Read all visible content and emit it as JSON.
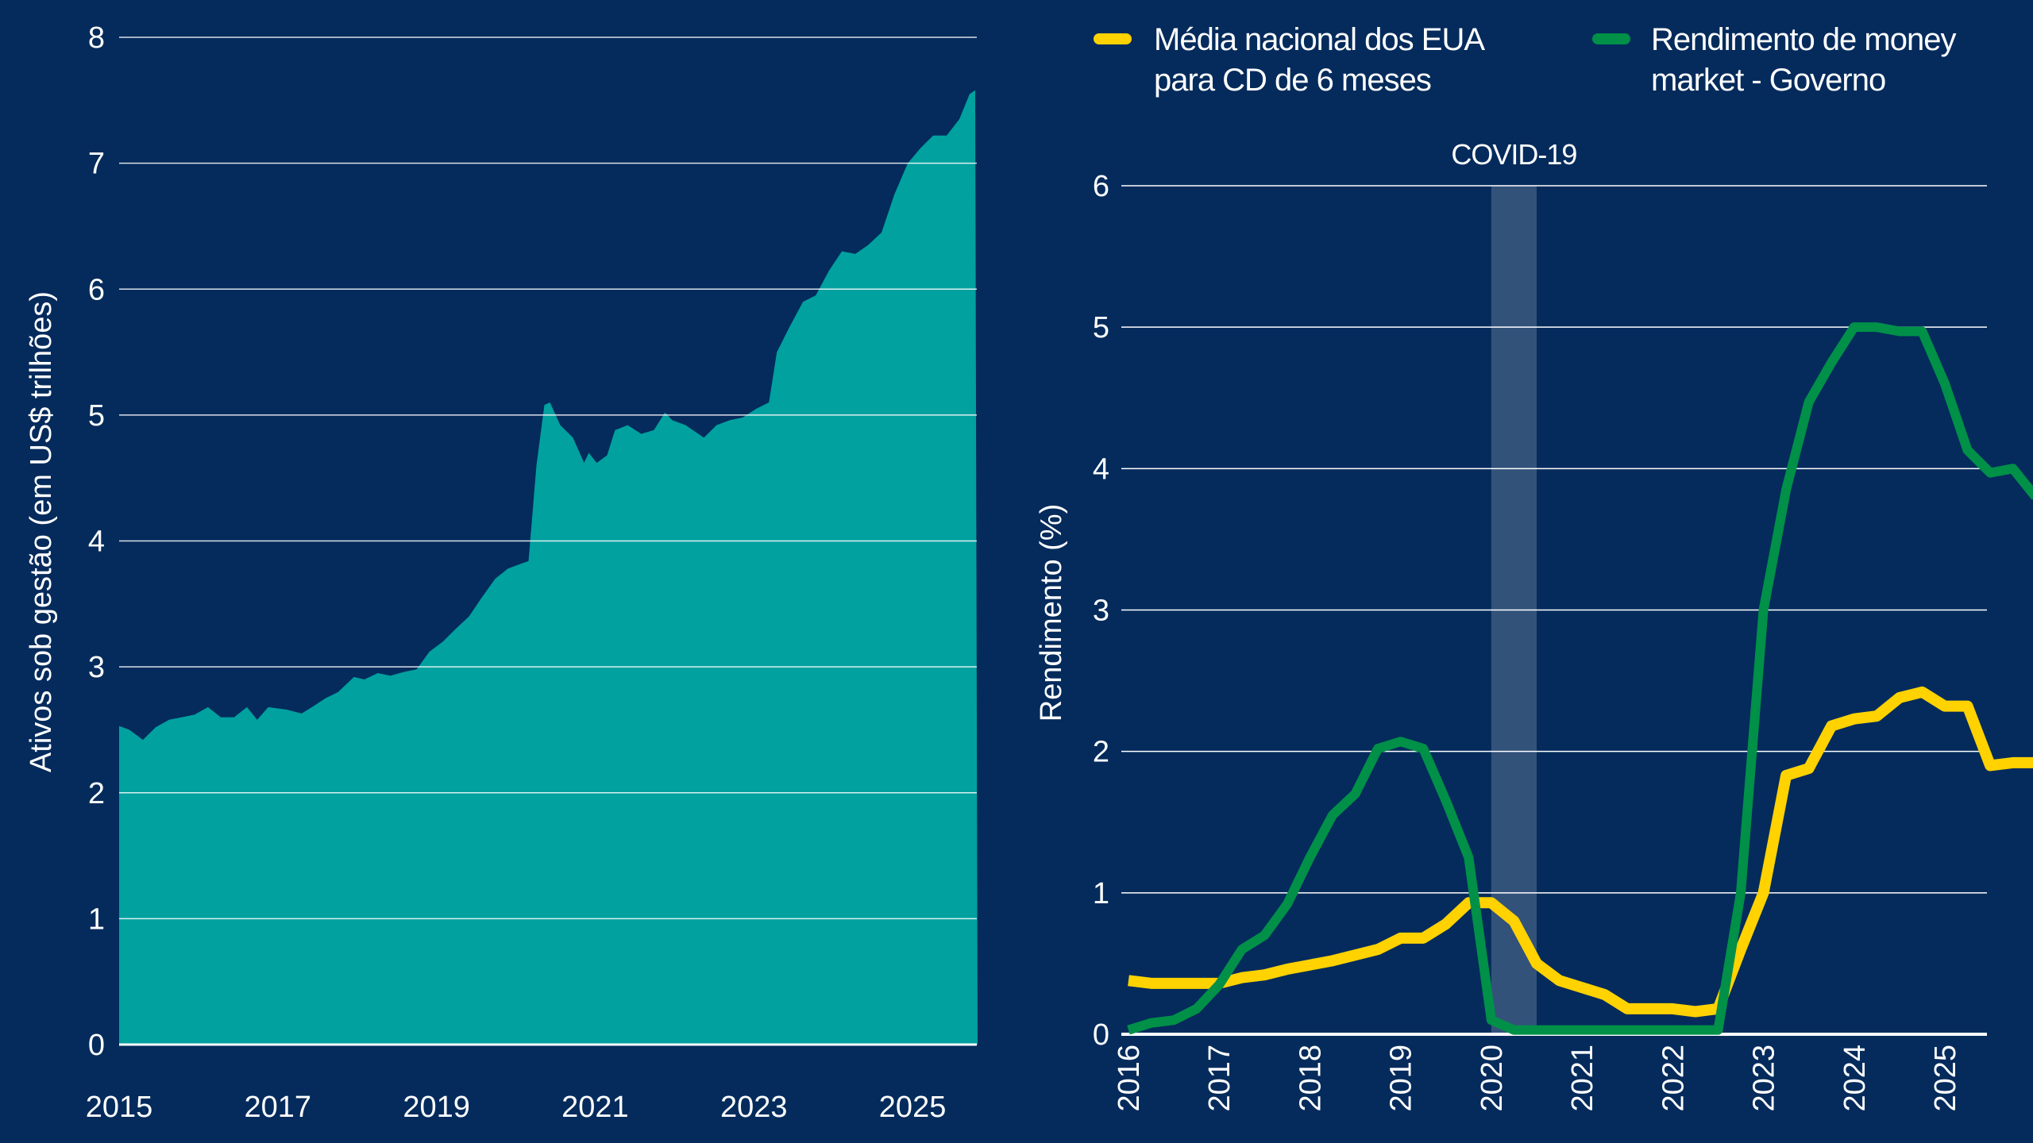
{
  "colors": {
    "background": "#042b5c",
    "area": "#00a19f",
    "cd": "#ffd200",
    "mm": "#009048",
    "covid_band": "#33527a",
    "grid": "#ffffff"
  },
  "chart_data": [
    {
      "type": "area",
      "ylabel": "Ativos sob gestão (em US$ trilhões)",
      "xlabel": "",
      "xlim": [
        2015,
        2025.79
      ],
      "ylim": [
        0,
        8
      ],
      "grid": true,
      "x_ticks": [
        "2015",
        "2017",
        "2019",
        "2021",
        "2023",
        "2025"
      ],
      "y_ticks": [
        "0",
        "1",
        "2",
        "3",
        "4",
        "5",
        "6",
        "7",
        "8"
      ],
      "x": [
        2015.0,
        2015.13,
        2015.3,
        2015.46,
        2015.63,
        2015.79,
        2015.95,
        2016.12,
        2016.28,
        2016.45,
        2016.61,
        2016.74,
        2016.88,
        2017.11,
        2017.3,
        2017.43,
        2017.6,
        2017.76,
        2017.96,
        2018.09,
        2018.26,
        2018.42,
        2018.59,
        2018.75,
        2018.91,
        2019.08,
        2019.24,
        2019.41,
        2019.57,
        2019.74,
        2019.9,
        2020.07,
        2020.16,
        2020.26,
        2020.36,
        2020.43,
        2020.56,
        2020.72,
        2020.86,
        2020.92,
        2021.02,
        2021.15,
        2021.25,
        2021.41,
        2021.58,
        2021.74,
        2021.88,
        2021.97,
        2022.14,
        2022.37,
        2022.53,
        2022.7,
        2022.86,
        2023.03,
        2023.19,
        2023.29,
        2023.45,
        2023.62,
        2023.78,
        2023.95,
        2024.11,
        2024.28,
        2024.44,
        2024.61,
        2024.77,
        2024.94,
        2025.1,
        2025.26,
        2025.43,
        2025.59,
        2025.72,
        2025.79
      ],
      "y": [
        2.53,
        2.5,
        2.42,
        2.52,
        2.58,
        2.6,
        2.62,
        2.68,
        2.6,
        2.6,
        2.68,
        2.58,
        2.68,
        2.66,
        2.63,
        2.68,
        2.75,
        2.8,
        2.92,
        2.9,
        2.95,
        2.93,
        2.96,
        2.98,
        3.12,
        3.2,
        3.3,
        3.4,
        3.55,
        3.7,
        3.78,
        3.82,
        3.84,
        4.6,
        5.08,
        5.1,
        4.92,
        4.82,
        4.62,
        4.7,
        4.62,
        4.68,
        4.88,
        4.92,
        4.85,
        4.88,
        5.02,
        4.96,
        4.92,
        4.82,
        4.92,
        4.96,
        4.98,
        5.05,
        5.1,
        5.5,
        5.7,
        5.9,
        5.95,
        6.15,
        6.3,
        6.28,
        6.35,
        6.45,
        6.75,
        7.0,
        7.12,
        7.22,
        7.22,
        7.35,
        7.55,
        7.58
      ]
    },
    {
      "type": "line",
      "ylabel": "Rendimento (%)",
      "xlabel": "",
      "xlim": [
        2016,
        2025.75
      ],
      "ylim": [
        0,
        6
      ],
      "grid": true,
      "legend_position": "top",
      "x_ticks": [
        "2016",
        "2017",
        "2018",
        "2019",
        "2020",
        "2021",
        "2022",
        "2023",
        "2024",
        "2025"
      ],
      "y_ticks": [
        "0",
        "1",
        "2",
        "3",
        "4",
        "5",
        "6"
      ],
      "x_start": 2016,
      "x_step_years": 0.25,
      "annotation": {
        "label": "COVID-19",
        "x_from": 2020.0,
        "x_to": 2020.5
      },
      "series": [
        {
          "name": "Média nacional dos EUA para CD de 6 meses",
          "name_lines": [
            "Média nacional dos EUA",
            "para CD de 6 meses"
          ],
          "color": "#ffd200",
          "values": [
            0.38,
            0.36,
            0.36,
            0.36,
            0.36,
            0.4,
            0.42,
            0.46,
            0.49,
            0.52,
            0.56,
            0.6,
            0.68,
            0.68,
            0.78,
            0.93,
            0.93,
            0.8,
            0.5,
            0.38,
            0.33,
            0.28,
            0.18,
            0.18,
            0.18,
            0.16,
            0.18,
            0.6,
            1.0,
            1.83,
            1.88,
            2.18,
            2.23,
            2.25,
            2.38,
            2.42,
            2.32,
            2.32,
            1.9,
            1.92,
            1.92
          ]
        },
        {
          "name": "Rendimento de money market - Governo",
          "name_lines": [
            "Rendimento de money",
            "market - Governo"
          ],
          "color": "#009048",
          "values": [
            0.03,
            0.08,
            0.1,
            0.18,
            0.35,
            0.6,
            0.7,
            0.92,
            1.25,
            1.55,
            1.7,
            2.02,
            2.07,
            2.02,
            1.65,
            1.25,
            0.1,
            0.03,
            0.03,
            0.03,
            0.03,
            0.03,
            0.03,
            0.03,
            0.03,
            0.03,
            0.03,
            1.0,
            3.0,
            3.85,
            4.47,
            4.75,
            5.0,
            5.0,
            4.97,
            4.97,
            4.6,
            4.13,
            3.97,
            4.0,
            3.8
          ]
        }
      ]
    }
  ]
}
